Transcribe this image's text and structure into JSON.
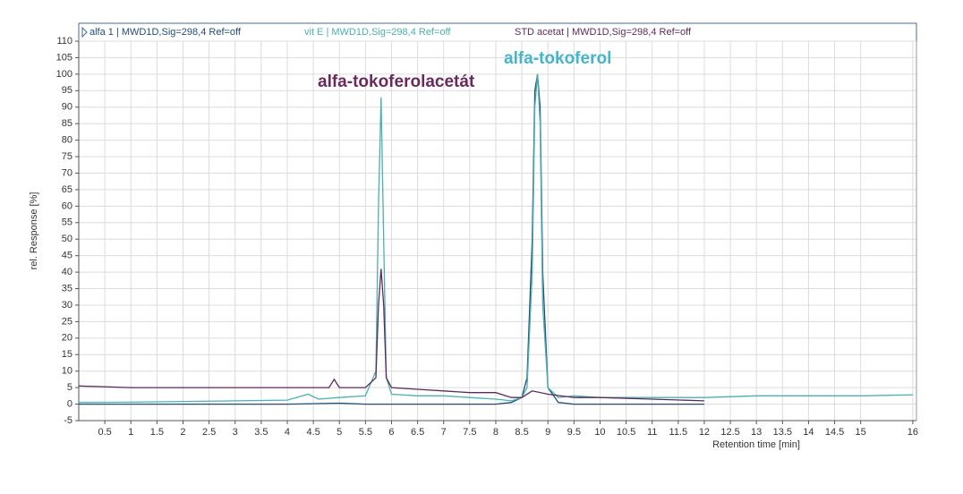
{
  "chart_data": {
    "type": "line",
    "xlabel": "Retention time [min]",
    "ylabel": "rel. Response [%]",
    "xlim": [
      0,
      16.07
    ],
    "ylim": [
      -5,
      110
    ],
    "xticks": [
      0.5,
      1,
      1.5,
      2,
      2.5,
      3,
      3.5,
      4,
      4.5,
      5,
      5.5,
      6,
      6.5,
      7,
      7.5,
      8,
      8.5,
      9,
      9.5,
      10,
      10.5,
      11,
      11.5,
      12,
      12.5,
      13,
      13.5,
      14,
      14.5,
      15,
      16
    ],
    "yticks": [
      -5,
      0,
      5,
      10,
      15,
      20,
      25,
      30,
      35,
      40,
      45,
      50,
      55,
      60,
      65,
      70,
      75,
      80,
      85,
      90,
      95,
      100,
      105,
      110
    ],
    "grid": true,
    "annotations": [
      {
        "text": "alfa-tokoferolacetát",
        "color": "#6b2a5e"
      },
      {
        "text": "alfa-tokoferol",
        "color": "#45b5cc"
      }
    ],
    "series": [
      {
        "name": "alfa 1 | MWD1D,Sig=298,4 Ref=off",
        "color": "#1f4e79",
        "x": [
          0,
          4,
          5,
          5.5,
          8,
          8.3,
          8.5,
          8.6,
          8.7,
          8.75,
          8.8,
          8.85,
          8.9,
          9,
          9.2,
          9.5,
          10,
          11,
          12
        ],
        "values": [
          0,
          0,
          0.3,
          0,
          0,
          0.5,
          2,
          8,
          50,
          95,
          100,
          90,
          40,
          5,
          0.5,
          0,
          0,
          0,
          0
        ]
      },
      {
        "name": "vit E | MWD1D,Sig=298,4 Ref=off",
        "color": "#4bb0b0",
        "x": [
          0,
          1,
          2,
          3,
          4,
          4.4,
          4.6,
          5,
          5.5,
          5.7,
          5.75,
          5.8,
          5.85,
          5.9,
          6,
          6.5,
          7,
          7.5,
          8,
          8.3,
          8.5,
          8.6,
          8.7,
          8.75,
          8.8,
          8.85,
          8.9,
          9,
          9.2,
          9.5,
          10,
          11,
          12,
          13,
          14,
          15,
          16
        ],
        "values": [
          0.5,
          0.6,
          0.8,
          1,
          1.2,
          3,
          1.5,
          2,
          2.5,
          10,
          60,
          93,
          50,
          8,
          3,
          2.5,
          2.5,
          2,
          1.5,
          1,
          2,
          5,
          40,
          90,
          100,
          85,
          30,
          5,
          2,
          2.5,
          2,
          2,
          2,
          2.5,
          2.5,
          2.5,
          2.8
        ]
      },
      {
        "name": "STD acetat | MWD1D,Sig=298,4 Ref=off",
        "color": "#5e2a5e",
        "x": [
          0,
          1,
          2,
          3,
          4,
          4.8,
          4.9,
          5,
          5.5,
          5.7,
          5.75,
          5.8,
          5.85,
          5.9,
          6,
          6.5,
          7,
          7.5,
          8,
          8.3,
          8.5,
          8.7,
          9,
          9.5,
          10,
          11,
          12
        ],
        "values": [
          5.5,
          5,
          5,
          5,
          5,
          5,
          7.5,
          5,
          5,
          8,
          30,
          41,
          30,
          8,
          5,
          4.5,
          4,
          3.5,
          3.5,
          2,
          2,
          4,
          3,
          2,
          2,
          1.5,
          1
        ]
      }
    ]
  }
}
